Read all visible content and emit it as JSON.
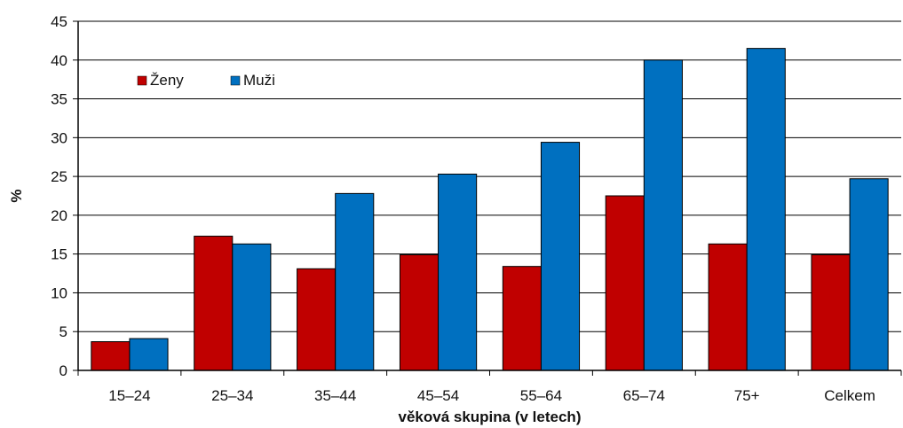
{
  "chart_data": {
    "type": "bar",
    "title": "",
    "xlabel": "věková skupina (v letech)",
    "ylabel": "%",
    "ylim": [
      0,
      45
    ],
    "yticks": [
      0,
      5,
      10,
      15,
      20,
      25,
      30,
      35,
      40,
      45
    ],
    "grid": true,
    "legend_position": "top-left",
    "categories": [
      "15–24",
      "25–34",
      "35–44",
      "45–54",
      "55–64",
      "65–74",
      "75+",
      "Celkem"
    ],
    "series": [
      {
        "name": "Ženy",
        "color": "#C00000",
        "values": [
          3.7,
          17.3,
          13.1,
          14.9,
          13.4,
          22.5,
          16.3,
          14.9
        ]
      },
      {
        "name": "Muži",
        "color": "#0070C0",
        "values": [
          4.1,
          16.3,
          22.8,
          25.3,
          29.4,
          40.0,
          41.5,
          24.7
        ]
      }
    ]
  }
}
